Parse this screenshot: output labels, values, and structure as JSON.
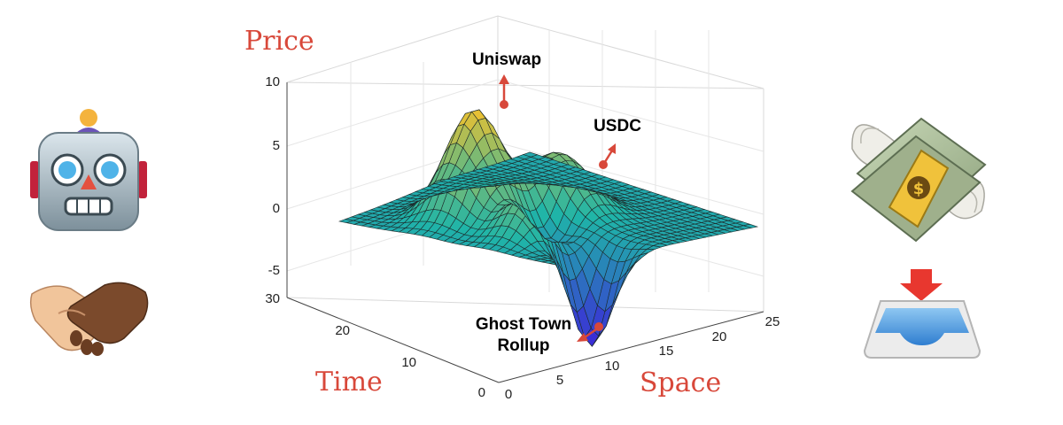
{
  "axes": {
    "price_label": "Price",
    "time_label": "Time",
    "space_label": "Space",
    "z_ticks": [
      "10",
      "5",
      "0",
      "-5"
    ],
    "time_ticks": [
      "30",
      "20",
      "10",
      "0"
    ],
    "space_ticks": [
      "0",
      "5",
      "10",
      "15",
      "20",
      "25"
    ]
  },
  "annotations": {
    "peak": "Uniswap",
    "secondary": "USDC",
    "trough_line1": "Ghost Town",
    "trough_line2": "Rollup"
  },
  "colors": {
    "accent": "#d8483a",
    "surface_low": "#3a2fd6",
    "surface_mid": "#1fb5a8",
    "surface_high": "#f2c12e"
  },
  "icons": {
    "left_top": "robot-icon",
    "left_bottom": "handshake-icon",
    "right_top": "money-with-wings-icon",
    "right_bottom": "inbox-tray-icon"
  }
}
